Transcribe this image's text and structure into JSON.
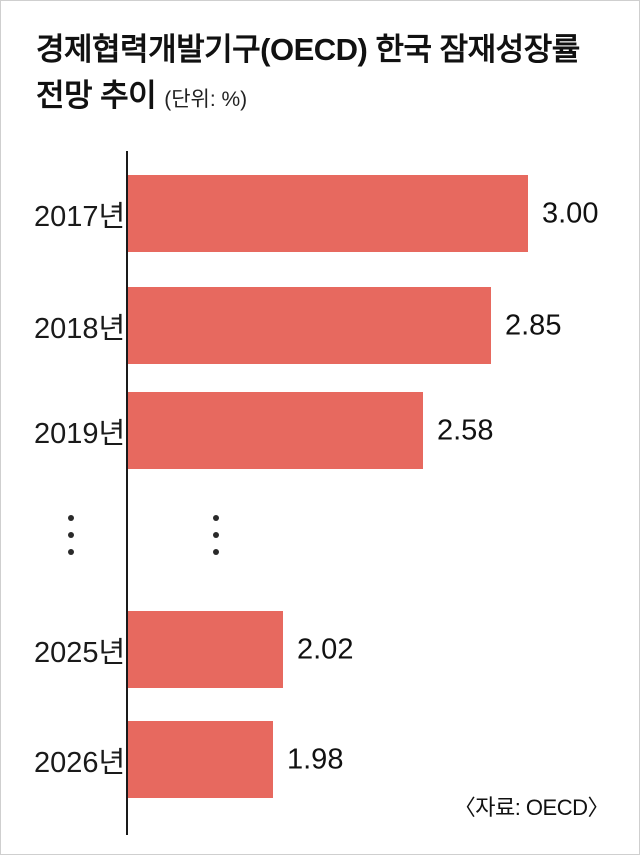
{
  "header": {
    "title_line1": "경제협력개발기구(OECD) 한국 잠재성장률",
    "title_line2": "전망 추이",
    "unit_label": "(단위: %)"
  },
  "chart_data": {
    "type": "bar",
    "orientation": "horizontal",
    "title": "경제협력개발기구(OECD) 한국 잠재성장률 전망 추이",
    "unit": "%",
    "categories": [
      "2017년",
      "2018년",
      "2019년",
      "2025년",
      "2026년"
    ],
    "values": [
      3.0,
      2.85,
      2.58,
      2.02,
      1.98
    ],
    "value_labels": [
      "3.00",
      "2.85",
      "2.58",
      "2.02",
      "1.98"
    ],
    "ellipsis_after_index": 2,
    "bar_color": "#e7695f",
    "axis_min": 1.4,
    "axis_max": 3.0,
    "grid": false,
    "legend": false
  },
  "footer": {
    "source": "〈자료: OECD〉"
  }
}
